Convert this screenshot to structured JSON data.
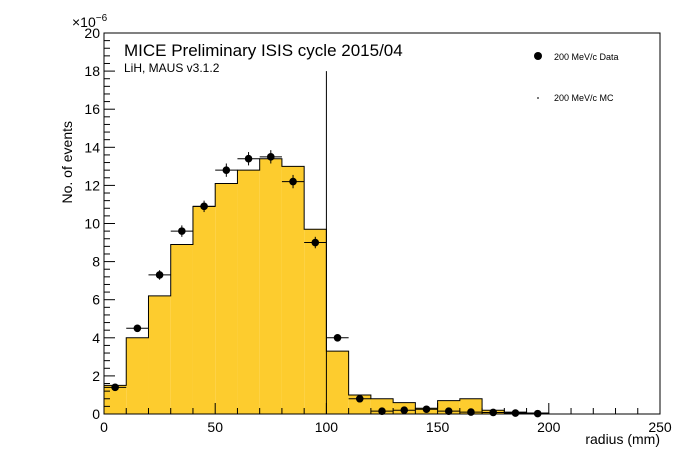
{
  "chart_data": {
    "type": "bar",
    "title": "MICE Preliminary ISIS cycle 2015/04",
    "subtitle": "LiH, MAUS v3.1.2",
    "xlabel": "radius (mm)",
    "ylabel": "No. of events",
    "y_exponent_label": "×10",
    "y_exponent_power": "−6",
    "xlim": [
      0,
      250
    ],
    "ylim": [
      0,
      20
    ],
    "x_ticks": [
      "0",
      "50",
      "100",
      "150",
      "200",
      "250"
    ],
    "y_ticks": [
      "0",
      "2",
      "4",
      "6",
      "8",
      "10",
      "12",
      "14",
      "16",
      "18",
      "20"
    ],
    "grid": false,
    "legend_position": "top-right",
    "cut_line_x": 100,
    "bin_width": 10,
    "series": [
      {
        "name": "200 MeV/c MC",
        "kind": "histogram",
        "color": "#fdcc2e",
        "edge_color": "#000000",
        "bin_low": [
          0,
          10,
          20,
          30,
          40,
          50,
          60,
          70,
          80,
          90,
          100,
          110,
          120,
          130,
          140,
          150,
          160,
          170,
          180,
          190
        ],
        "values": [
          1.5,
          4.0,
          6.2,
          8.9,
          10.9,
          12.1,
          12.8,
          13.4,
          13.0,
          9.7,
          3.3,
          1.0,
          0.8,
          0.6,
          0.3,
          0.7,
          0.8,
          0.2,
          0.1,
          0.05
        ]
      },
      {
        "name": "200 MeV/c Data",
        "kind": "points",
        "color": "#000000",
        "x": [
          5,
          15,
          25,
          35,
          45,
          55,
          65,
          75,
          85,
          95,
          105,
          115,
          125,
          135,
          145,
          155,
          165,
          175,
          185,
          195
        ],
        "values": [
          1.4,
          4.5,
          7.3,
          9.6,
          10.9,
          12.8,
          13.4,
          13.5,
          12.2,
          9.0,
          4.0,
          0.8,
          0.15,
          0.2,
          0.25,
          0.15,
          0.1,
          0.08,
          0.05,
          0.02
        ],
        "errors": [
          0.12,
          0.15,
          0.25,
          0.3,
          0.3,
          0.35,
          0.35,
          0.35,
          0.35,
          0.3,
          0.15,
          0.1,
          0.05,
          0.05,
          0.05,
          0.05,
          0.05,
          0.05,
          0.05,
          0.05
        ]
      }
    ]
  }
}
